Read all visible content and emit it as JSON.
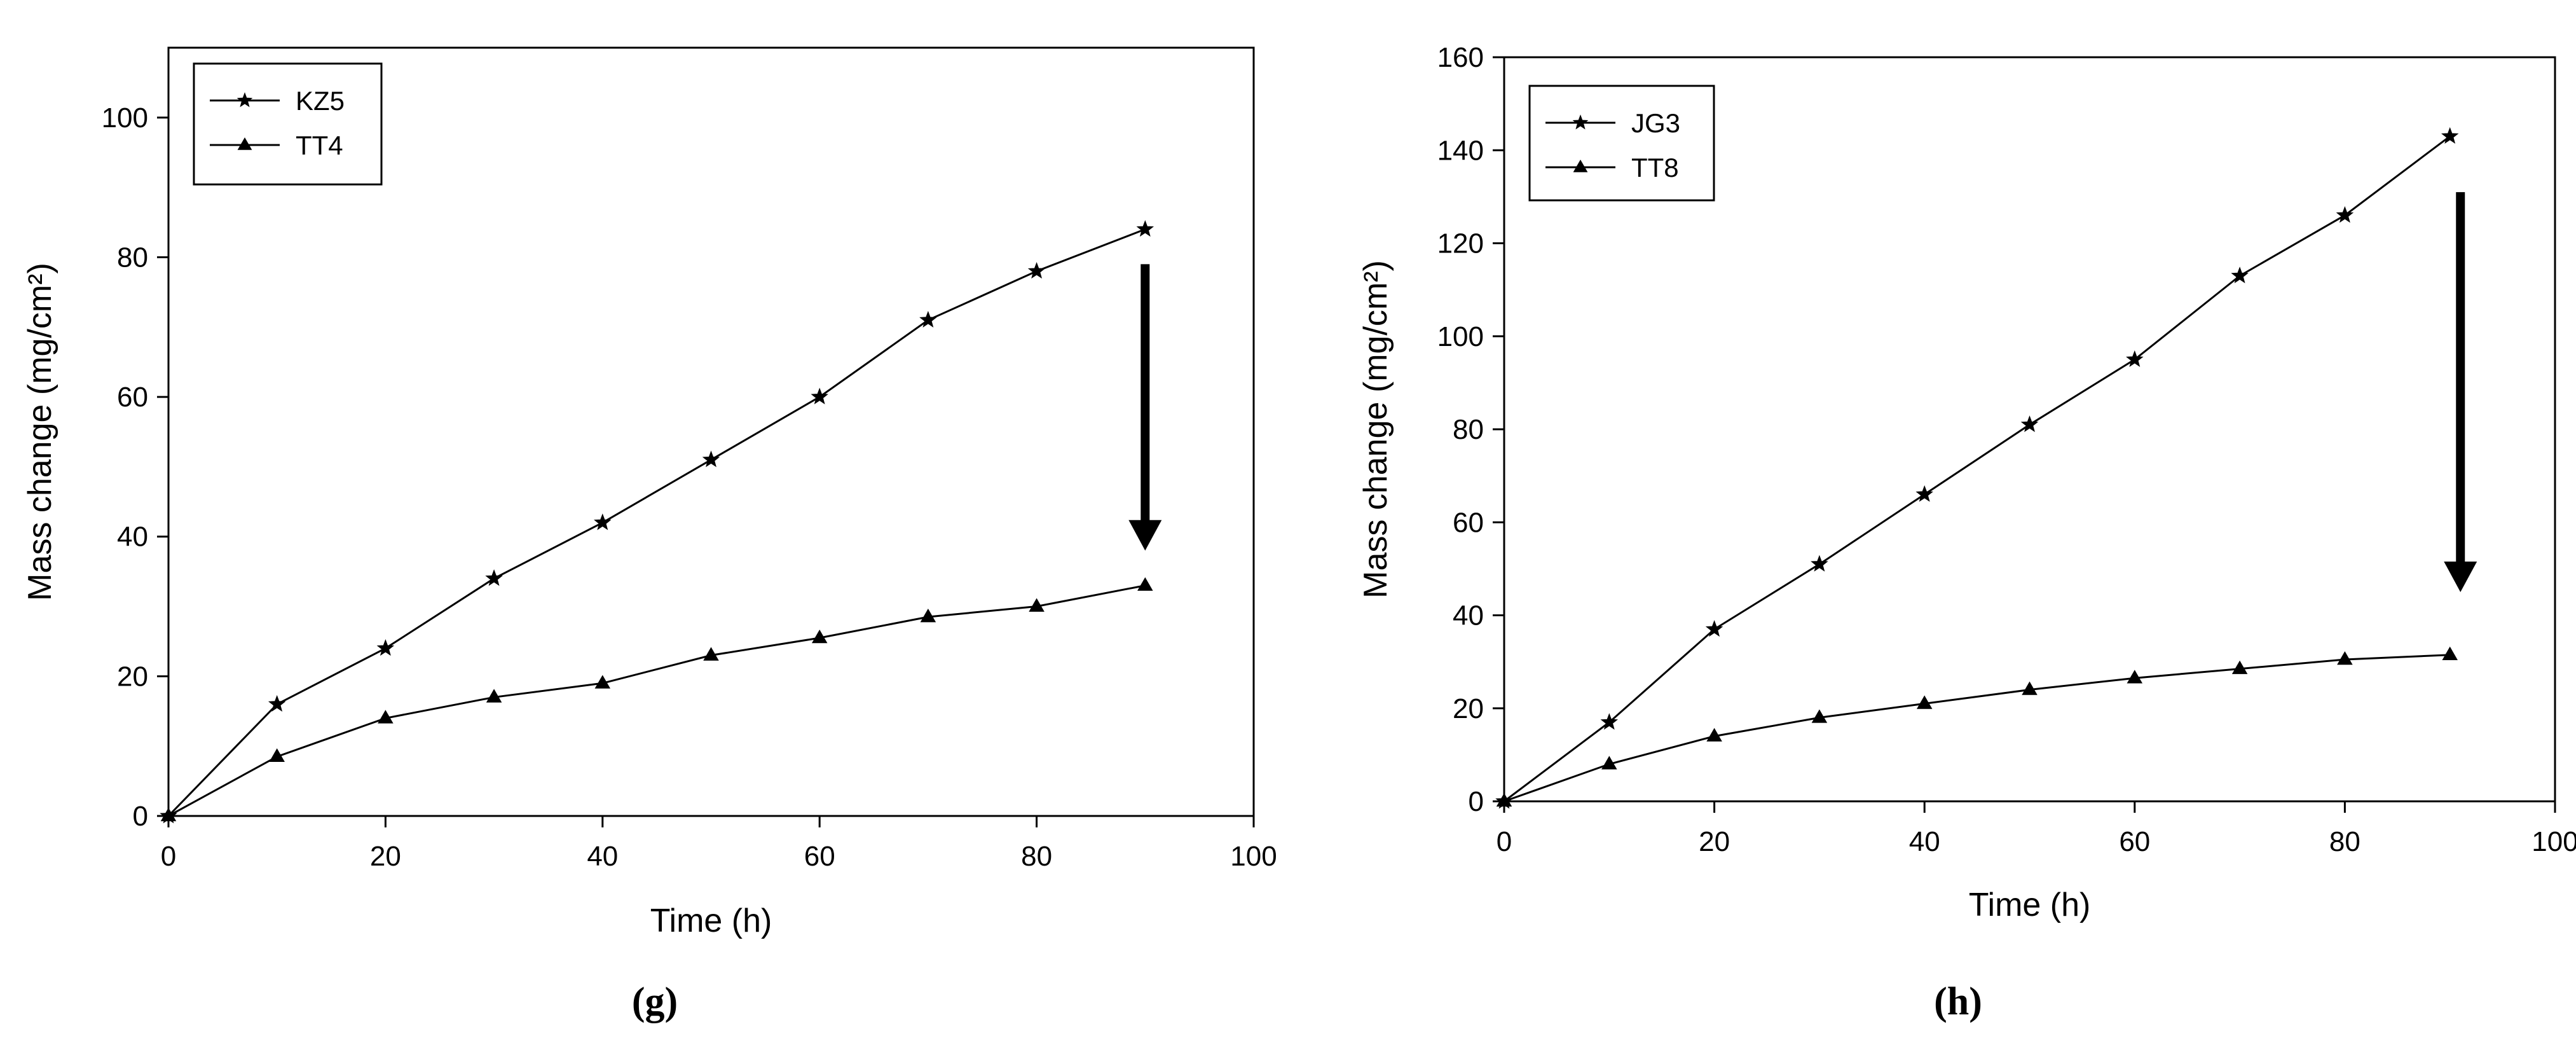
{
  "panel_labels": [
    "(g)",
    "(h)"
  ],
  "chart_data": [
    {
      "type": "line",
      "xlabel": "Time (h)",
      "ylabel": "Mass change (mg/cm²)",
      "xlim": [
        0,
        100
      ],
      "ylim": [
        0,
        110
      ],
      "xticks": [
        0,
        20,
        40,
        60,
        80,
        100
      ],
      "yticks": [
        0,
        20,
        40,
        60,
        80,
        100
      ],
      "grid": false,
      "legend_position": "top-left",
      "series": [
        {
          "name": "KZ5",
          "marker": "star",
          "x": [
            0,
            10,
            20,
            30,
            40,
            50,
            60,
            70,
            80,
            90
          ],
          "y": [
            0,
            16,
            24,
            34,
            42,
            51,
            60,
            71,
            78,
            84
          ]
        },
        {
          "name": "TT4",
          "marker": "triangle",
          "x": [
            0,
            10,
            20,
            30,
            40,
            50,
            60,
            70,
            80,
            90
          ],
          "y": [
            0,
            8.5,
            14,
            17,
            19,
            23,
            25.5,
            28.5,
            30,
            33
          ]
        }
      ],
      "annotation": {
        "type": "arrow",
        "direction": "down",
        "x": 90,
        "y_from": 79,
        "y_to": 38
      }
    },
    {
      "type": "line",
      "xlabel": "Time (h)",
      "ylabel": "Mass change (mg/cm²)",
      "xlim": [
        0,
        100
      ],
      "ylim": [
        0,
        160
      ],
      "xticks": [
        0,
        20,
        40,
        60,
        80,
        100
      ],
      "yticks": [
        0,
        20,
        40,
        60,
        80,
        100,
        120,
        140,
        160
      ],
      "grid": false,
      "legend_position": "top-left",
      "series": [
        {
          "name": "JG3",
          "marker": "star",
          "x": [
            0,
            10,
            20,
            30,
            40,
            50,
            60,
            70,
            80,
            90
          ],
          "y": [
            0,
            17,
            37,
            51,
            66,
            81,
            95,
            113,
            126,
            143
          ]
        },
        {
          "name": "TT8",
          "marker": "triangle",
          "x": [
            0,
            10,
            20,
            30,
            40,
            50,
            60,
            70,
            80,
            90
          ],
          "y": [
            0,
            8,
            14,
            18,
            21,
            24,
            26.5,
            28.5,
            30.5,
            31.5
          ]
        }
      ],
      "annotation": {
        "type": "arrow",
        "direction": "down",
        "x": 91,
        "y_from": 131,
        "y_to": 45
      }
    }
  ]
}
